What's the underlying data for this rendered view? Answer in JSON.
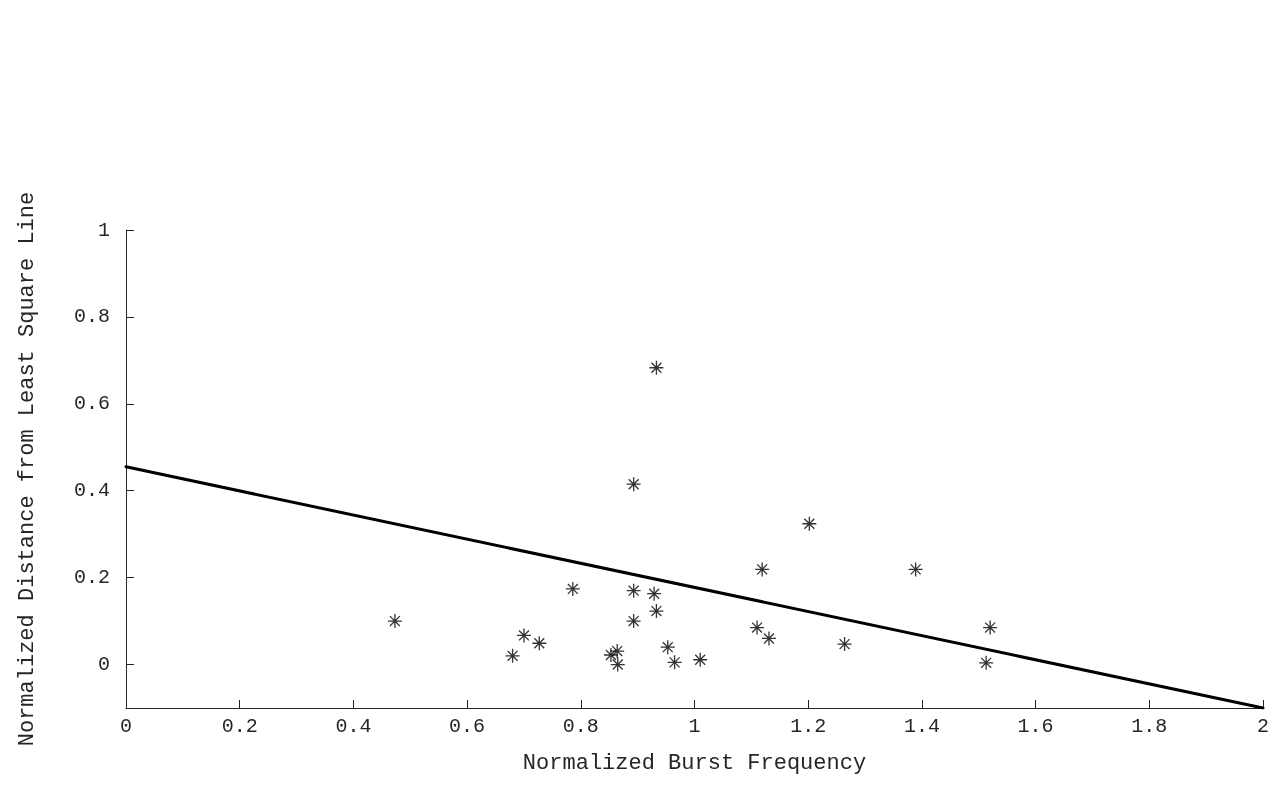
{
  "chart_data": {
    "type": "scatter",
    "xlabel": "Normalized Burst Frequency",
    "ylabel": "Normalized Distance from Least Square Line",
    "xlim": [
      0,
      2
    ],
    "ylim": [
      -0.1,
      1
    ],
    "xticks": [
      0,
      0.2,
      0.4,
      0.6,
      0.8,
      1,
      1.2,
      1.4,
      1.6,
      1.8,
      2
    ],
    "yticks": [
      0,
      0.2,
      0.4,
      0.6,
      0.8,
      1
    ],
    "grid": false,
    "series": [
      {
        "marker": "cross",
        "color": "#000000",
        "x": [
          0.473,
          0.68,
          0.7,
          0.727,
          0.786,
          0.853,
          0.864,
          0.865,
          0.893,
          0.893,
          0.929,
          0.933,
          0.933,
          0.893,
          0.953,
          0.965,
          1.01,
          1.11,
          1.131,
          1.119,
          1.202,
          1.264,
          1.389,
          1.52,
          1.513
        ],
        "values": [
          0.1,
          0.02,
          0.067,
          0.049,
          0.174,
          0.022,
          0.031,
          0.0,
          0.17,
          0.1,
          0.163,
          0.123,
          0.683,
          0.415,
          0.04,
          0.005,
          0.011,
          0.085,
          0.06,
          0.219,
          0.324,
          0.047,
          0.219,
          0.085,
          0.004
        ]
      },
      {
        "type": "line",
        "marker": "none",
        "line_style": "solid",
        "color": "#000000",
        "x": [
          0,
          2
        ],
        "values": [
          0.455,
          -0.1
        ]
      }
    ]
  }
}
